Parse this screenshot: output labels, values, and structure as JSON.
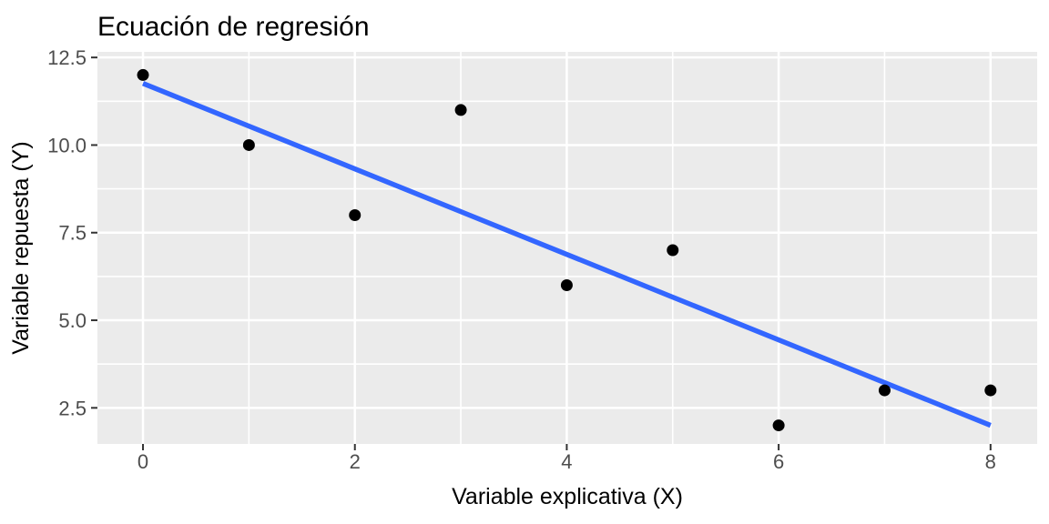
{
  "chart_data": {
    "type": "scatter",
    "title": "Ecuación de regresión",
    "xlabel": "Variable explicativa (X)",
    "ylabel": "Variable repuesta (Y)",
    "points": [
      {
        "x": 0,
        "y": 12
      },
      {
        "x": 1,
        "y": 10
      },
      {
        "x": 2,
        "y": 8
      },
      {
        "x": 3,
        "y": 11
      },
      {
        "x": 4,
        "y": 6
      },
      {
        "x": 5,
        "y": 7
      },
      {
        "x": 6,
        "y": 2
      },
      {
        "x": 7,
        "y": 3
      },
      {
        "x": 8,
        "y": 3
      }
    ],
    "trend_line": {
      "kind": "linear-regression",
      "intercept": 11.76,
      "slope": -1.22,
      "x_start": 0,
      "x_end": 8
    },
    "x_ticks": {
      "values": [
        0,
        2,
        4,
        6,
        8
      ],
      "labels": [
        "0",
        "2",
        "4",
        "6",
        "8"
      ]
    },
    "y_ticks": {
      "values": [
        2.5,
        5.0,
        7.5,
        10.0,
        12.5
      ],
      "labels": [
        "2.5",
        "5.0",
        "7.5",
        "10.0",
        "12.5"
      ]
    },
    "x_minor_gridlines": [
      1,
      3,
      5,
      7
    ],
    "y_minor_gridlines": [
      3.75,
      6.25,
      8.75,
      11.25
    ],
    "xlim": [
      -0.43,
      8.44
    ],
    "ylim": [
      1.47,
      12.66
    ],
    "grid": "major-and-minor",
    "legend_position": "none",
    "colors": {
      "point": "#000000",
      "trend": "#3366FF",
      "panel_background": "#EBEBEB",
      "gridline": "#FFFFFF",
      "tick_mark": "#333333",
      "tick_text": "#4D4D4D",
      "title_text": "#000000"
    }
  }
}
